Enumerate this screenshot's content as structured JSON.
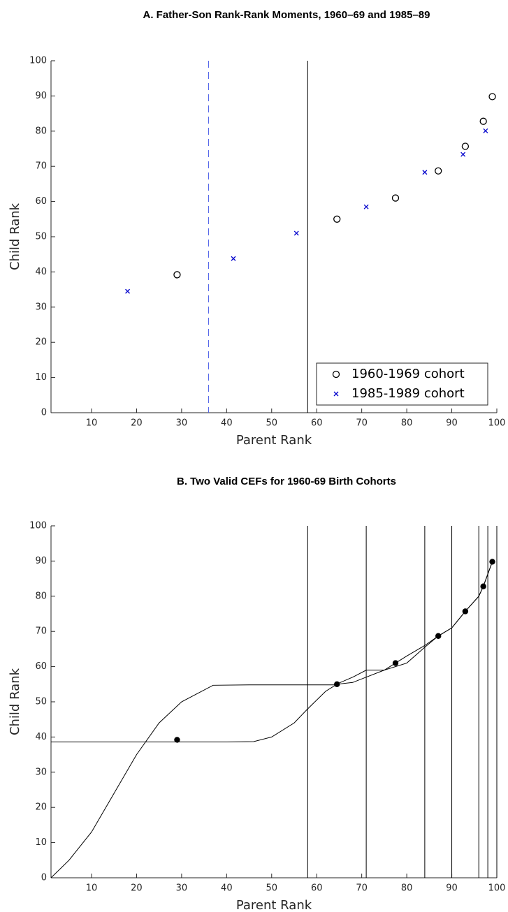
{
  "chart_data": [
    {
      "type": "scatter",
      "title": "A. Father-Son Rank-Rank Moments, 1960–69 and 1985–89",
      "x_label": "Parent Rank",
      "y_label": "Child Rank",
      "xlim": [
        1,
        100
      ],
      "ylim": [
        0,
        100
      ],
      "xticks": [
        10,
        20,
        30,
        40,
        50,
        60,
        70,
        80,
        90,
        100
      ],
      "yticks": [
        0,
        10,
        20,
        30,
        40,
        50,
        60,
        70,
        80,
        90,
        100
      ],
      "legend": "lower right",
      "vlines": [
        {
          "x": 36,
          "color": "#4a5ee8",
          "dashed": true
        },
        {
          "x": 58,
          "color": "#000000",
          "dashed": false
        }
      ],
      "series": [
        {
          "name": "1960-1969 cohort",
          "color": "#000000",
          "marker": "circle",
          "x": [
            29,
            64.5,
            77.5,
            87,
            93,
            97,
            99
          ],
          "values": [
            39.2,
            55,
            61,
            68.7,
            75.7,
            82.8,
            89.8
          ]
        },
        {
          "name": "1985-1989 cohort",
          "color": "#0000cc",
          "marker": "x",
          "x": [
            18,
            41.5,
            55.5,
            71,
            84,
            92.5,
            97.5
          ],
          "values": [
            34.5,
            43.8,
            51,
            58.5,
            68.3,
            73.4,
            80.1
          ]
        }
      ]
    },
    {
      "type": "scatter",
      "title": "B. Two Valid CEFs for 1960-69 Birth Cohorts",
      "x_label": "Parent Rank",
      "y_label": "Child Rank",
      "xlim": [
        1,
        100
      ],
      "ylim": [
        0,
        100
      ],
      "xticks": [
        10,
        20,
        30,
        40,
        50,
        60,
        70,
        80,
        90,
        100
      ],
      "yticks": [
        0,
        10,
        20,
        30,
        40,
        50,
        60,
        70,
        80,
        90,
        100
      ],
      "vlines": [
        {
          "x": 58,
          "color": "#000000",
          "dashed": false
        },
        {
          "x": 71,
          "color": "#000000",
          "dashed": false
        },
        {
          "x": 84,
          "color": "#000000",
          "dashed": false
        },
        {
          "x": 90,
          "color": "#000000",
          "dashed": false
        },
        {
          "x": 96,
          "color": "#000000",
          "dashed": false
        },
        {
          "x": 98,
          "color": "#000000",
          "dashed": false
        },
        {
          "x": 100,
          "color": "#000000",
          "dashed": false
        }
      ],
      "series": [
        {
          "color": "#000000",
          "marker": "dot",
          "x": [
            29,
            64.5,
            77.5,
            87,
            93,
            97,
            99
          ],
          "values": [
            39.2,
            55,
            61,
            68.7,
            75.7,
            82.8,
            89.8
          ]
        },
        {
          "color": "#000000",
          "marker": "line",
          "x": [
            1,
            5,
            10,
            15,
            20,
            25,
            30,
            37,
            45,
            55,
            64,
            68,
            71,
            75,
            80,
            84,
            87,
            90,
            93,
            96,
            97,
            99
          ],
          "values": [
            0,
            5,
            13,
            24,
            35,
            44,
            50,
            54.7,
            54.8,
            54.8,
            54.8,
            57,
            59,
            59,
            61,
            65.5,
            68.7,
            71,
            75.7,
            80,
            82.8,
            89.8
          ]
        },
        {
          "color": "#000000",
          "marker": "line",
          "x": [
            1,
            20,
            30,
            40,
            46,
            50,
            55,
            58,
            62,
            64.5,
            68,
            71,
            75,
            77.5,
            80,
            84,
            87,
            90,
            93,
            96,
            97,
            99
          ],
          "values": [
            38.6,
            38.6,
            38.6,
            38.6,
            38.7,
            40,
            44,
            48,
            53,
            55,
            55.5,
            57,
            59,
            61,
            63,
            66,
            68.7,
            71,
            75.7,
            80,
            82.8,
            89.8
          ]
        }
      ]
    }
  ]
}
